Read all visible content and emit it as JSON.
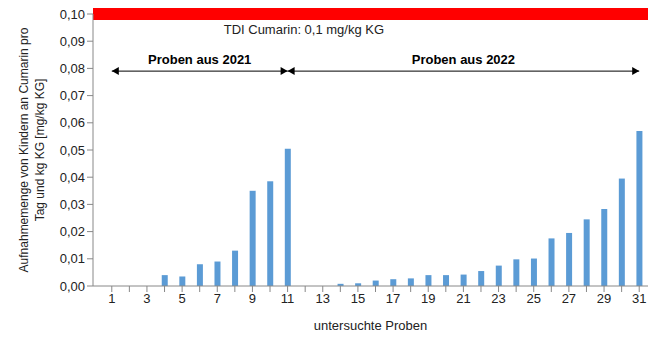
{
  "chart_data": {
    "type": "bar",
    "y_label": [
      "Aufnahmemenge von Kindern  an Cumarin pro",
      "Tag und kg KG [mg/kg KG]"
    ],
    "x_label": "untersuchte Proben",
    "categories": [
      "1",
      null,
      "3",
      null,
      "5",
      null,
      "7",
      null,
      "9",
      null,
      "11",
      null,
      "13",
      null,
      "15",
      null,
      "17",
      null,
      "19",
      null,
      "21",
      null,
      "23",
      null,
      "25",
      null,
      "27",
      null,
      "29",
      null,
      "31"
    ],
    "values": [
      0,
      0,
      0,
      0.004,
      0.0035,
      0.008,
      0.009,
      0.013,
      0.035,
      0.0385,
      0.0505,
      0,
      0,
      0.0008,
      0.001,
      0.002,
      0.0025,
      0.0028,
      0.004,
      0.004,
      0.0042,
      0.0055,
      0.0075,
      0.0098,
      0.0101,
      0.0175,
      0.0195,
      0.0245,
      0.0283,
      0.0395,
      0.057
    ],
    "color": "#5b9bd5",
    "ylim": [
      0,
      0.1
    ],
    "yticks": [
      {
        "value": 0,
        "label": "0,00"
      },
      {
        "value": 0.01,
        "label": "0,01"
      },
      {
        "value": 0.02,
        "label": "0,02"
      },
      {
        "value": 0.03,
        "label": "0,03"
      },
      {
        "value": 0.04,
        "label": "0,04"
      },
      {
        "value": 0.05,
        "label": "0,05"
      },
      {
        "value": 0.06,
        "label": "0,06"
      },
      {
        "value": 0.07,
        "label": "0,07"
      },
      {
        "value": 0.08,
        "label": "0,08"
      },
      {
        "value": 0.09,
        "label": "0,09"
      },
      {
        "value": 0.1,
        "label": "0,10"
      }
    ],
    "grid": false,
    "reference_lines": [
      {
        "value": 0.1,
        "label": "TDI Cumarin: 0,1 mg/kg KG",
        "color": "#ff0000"
      }
    ],
    "annotations": [
      {
        "text": "Proben aus 2021",
        "from": "1",
        "to": "11"
      },
      {
        "text": "Proben aus 2022",
        "from": "11",
        "to": "31"
      }
    ]
  }
}
